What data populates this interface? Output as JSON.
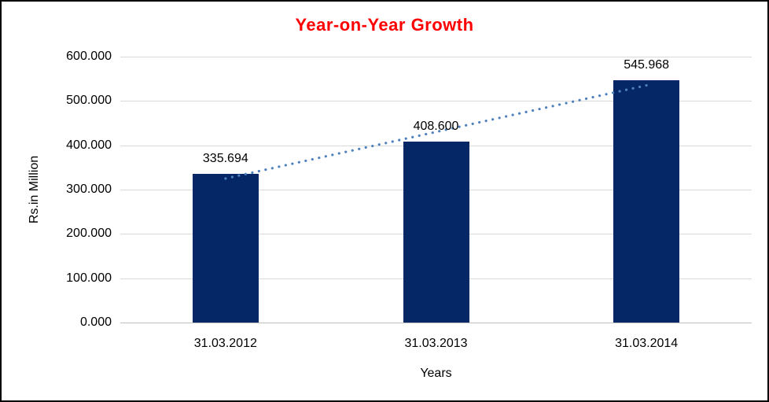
{
  "chart_data": {
    "type": "bar",
    "title": "Year-on-Year Growth",
    "title_color": "#FF0000",
    "xlabel": "Years",
    "ylabel": "Rs.in Million",
    "categories": [
      "31.03.2012",
      "31.03.2013",
      "31.03.2014"
    ],
    "values": [
      335.694,
      408.6,
      545.968
    ],
    "value_labels": [
      "335.694",
      "408.600",
      "545.968"
    ],
    "ylim": [
      0,
      600
    ],
    "ytick_step": 100,
    "ytick_labels": [
      "0.000",
      "100.000",
      "200.000",
      "300.000",
      "400.000",
      "500.000",
      "600.000"
    ],
    "grid": true,
    "legend": "none",
    "bar_color": "#052766",
    "gridline_color": "#D9D9D9",
    "axis_line_color": "#BFBFBF",
    "trendline": {
      "type": "linear",
      "style": "dotted",
      "color": "#4F81BD"
    }
  }
}
